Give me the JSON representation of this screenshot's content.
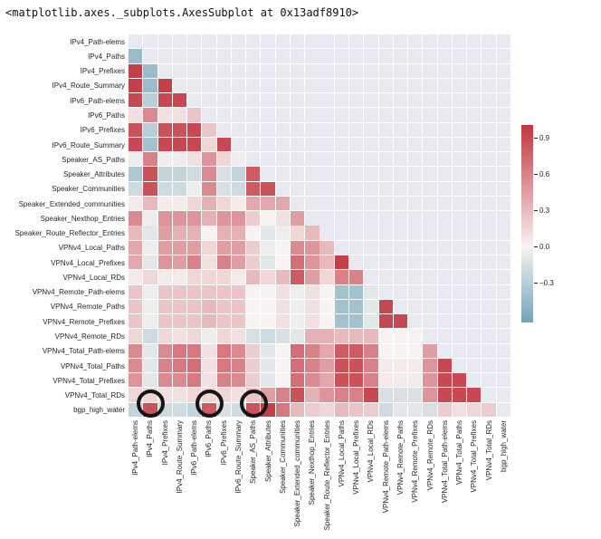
{
  "title": "<matplotlib.axes._subplots.AxesSubplot at 0x13adf8910>",
  "chart_data": {
    "type": "heatmap",
    "subtype": "lower-triangle-correlation-matrix",
    "grid": true,
    "labels": [
      "IPv4_Path-elems",
      "IPv4_Paths",
      "IPv4_Prefixes",
      "IPv4_Route_Summary",
      "IPv6_Path-elems",
      "IPv6_Paths",
      "IPv6_Prefixes",
      "IPv6_Route_Summary",
      "Speaker_AS_Paths",
      "Speaker_Attributes",
      "Speaker_Communities",
      "Speaker_Extended_communities",
      "Speaker_Nexthop_Entries",
      "Speaker_Route_Reflector_Entries",
      "VPNv4_Local_Paths",
      "VPNv4_Local_Prefixes",
      "VPNv4_Local_RDs",
      "VPNv4_Remote_Path-elems",
      "VPNv4_Remote_Paths",
      "VPNv4_Remote_Prefixes",
      "VPNv4_Remote_RDs",
      "VPNv4_Total_Path-elems",
      "VPNv4_Total_Paths",
      "VPNv4_Total_Prefixes",
      "VPNv4_Total_RDs",
      "bgp_high_water"
    ],
    "matrix": [
      [],
      [
        -0.45
      ],
      [
        0.95,
        -0.45
      ],
      [
        0.95,
        -0.45,
        0.95
      ],
      [
        0.9,
        -0.3,
        0.9,
        0.9
      ],
      [
        0.1,
        0.55,
        0.1,
        0.1,
        0.25
      ],
      [
        0.85,
        -0.3,
        0.85,
        0.85,
        0.9,
        0.25
      ],
      [
        0.9,
        -0.4,
        0.9,
        0.9,
        0.9,
        0.15,
        0.9
      ],
      [
        -0.05,
        0.6,
        -0.05,
        -0.05,
        0.1,
        0.5,
        0.15,
        -0.05
      ],
      [
        -0.35,
        0.85,
        -0.25,
        -0.25,
        -0.2,
        0.55,
        -0.15,
        -0.25,
        0.8
      ],
      [
        -0.2,
        0.85,
        -0.2,
        -0.2,
        -0.05,
        0.55,
        -0.15,
        -0.2,
        0.8,
        0.85
      ],
      [
        0.05,
        0.3,
        0.05,
        0.05,
        0.15,
        0.35,
        0.15,
        0.05,
        0.4,
        0.4,
        0.4
      ],
      [
        0.55,
        -0.05,
        0.5,
        0.5,
        0.5,
        0.35,
        0.5,
        0.5,
        0.2,
        0.0,
        0.1,
        0.45
      ],
      [
        0.3,
        -0.1,
        0.45,
        0.35,
        0.35,
        0.0,
        0.35,
        0.35,
        0.0,
        -0.1,
        -0.05,
        0.15,
        0.3
      ],
      [
        0.4,
        -0.05,
        0.45,
        0.45,
        0.45,
        0.15,
        0.45,
        0.45,
        0.2,
        -0.05,
        0.0,
        0.55,
        0.5,
        0.3
      ],
      [
        0.4,
        -0.1,
        0.5,
        0.45,
        0.6,
        0.1,
        0.6,
        0.45,
        0.2,
        -0.1,
        0.0,
        0.7,
        0.5,
        0.3,
        0.95
      ],
      [
        0.05,
        0.15,
        0.05,
        0.05,
        0.15,
        0.15,
        0.15,
        0.05,
        0.3,
        0.15,
        0.3,
        0.8,
        0.45,
        0.15,
        0.6,
        0.6
      ],
      [
        0.25,
        -0.05,
        0.25,
        0.25,
        0.25,
        0.25,
        0.25,
        0.25,
        0.0,
        0.0,
        0.1,
        -0.05,
        0.1,
        0.0,
        -0.4,
        -0.4,
        -0.1
      ],
      [
        0.25,
        -0.05,
        0.25,
        0.25,
        0.25,
        0.3,
        0.25,
        0.25,
        0.0,
        0.0,
        0.1,
        -0.05,
        0.1,
        0.0,
        -0.4,
        -0.4,
        -0.1,
        0.9
      ],
      [
        0.25,
        -0.05,
        0.25,
        0.25,
        0.25,
        0.3,
        0.25,
        0.25,
        0.0,
        0.0,
        0.1,
        -0.05,
        0.1,
        0.0,
        -0.4,
        -0.4,
        -0.1,
        0.9,
        0.9
      ],
      [
        0.15,
        -0.2,
        0.15,
        0.1,
        0.15,
        -0.05,
        0.15,
        0.1,
        -0.15,
        -0.2,
        -0.15,
        -0.1,
        0.35,
        0.35,
        0.3,
        0.3,
        0.3,
        0.0,
        0.0,
        0.0
      ],
      [
        0.55,
        -0.1,
        0.55,
        0.65,
        0.65,
        0.1,
        0.65,
        0.55,
        0.2,
        -0.1,
        0.0,
        0.7,
        0.6,
        0.4,
        0.8,
        0.8,
        0.6,
        0.0,
        0.0,
        0.0,
        0.45
      ],
      [
        0.55,
        -0.1,
        0.6,
        0.65,
        0.7,
        0.1,
        0.65,
        0.6,
        0.2,
        -0.1,
        0.0,
        0.7,
        0.6,
        0.45,
        0.85,
        0.85,
        0.6,
        0.05,
        0.05,
        0.05,
        0.5,
        0.9
      ],
      [
        0.5,
        -0.1,
        0.55,
        0.55,
        0.65,
        0.1,
        0.6,
        0.55,
        0.2,
        -0.1,
        0.0,
        0.7,
        0.55,
        0.4,
        0.85,
        0.85,
        0.6,
        0.05,
        0.05,
        0.05,
        0.5,
        0.9,
        0.9
      ],
      [
        0.15,
        0.15,
        0.1,
        0.1,
        0.15,
        0.15,
        0.15,
        0.1,
        0.25,
        0.45,
        0.6,
        0.85,
        0.35,
        0.5,
        0.6,
        0.6,
        0.9,
        -0.15,
        -0.15,
        -0.15,
        0.5,
        0.9,
        0.9,
        0.9
      ],
      [
        -0.25,
        0.85,
        -0.2,
        -0.2,
        -0.25,
        0.8,
        -0.15,
        -0.2,
        0.85,
        0.95,
        0.65,
        0.3,
        0.2,
        0.15,
        0.3,
        0.25,
        0.2,
        -0.2,
        -0.1,
        -0.1,
        -0.15,
        0.2,
        0.1,
        0.15,
        0.2
      ]
    ],
    "colorbar": {
      "ticks": [
        0.9,
        0.6,
        0.3,
        0.0,
        -0.3
      ],
      "tick_labels": [
        "0.9",
        "0.6",
        "0.3",
        "0.0",
        "−0.3"
      ],
      "vmax": 1.0,
      "vmin": -0.63,
      "position": "right"
    },
    "palette": {
      "positive_end": "#c23540",
      "negative_end": "#6fa2b8",
      "midpoint": "#f7f3f3",
      "masked_background": "#e9e9f2",
      "grid_line": "#ffffff",
      "negative_span": 0.65,
      "positive_span": 1.0
    },
    "annotations": {
      "circle_color": "#151515",
      "circled_row": "bgp_high_water",
      "circled_columns": [
        "IPv4_Paths",
        "IPv6_Paths",
        "Speaker_AS_Paths"
      ],
      "circles": [
        {
          "row": 25,
          "col": 1
        },
        {
          "row": 25,
          "col": 5
        },
        {
          "row": 25,
          "col": 8
        }
      ]
    }
  }
}
